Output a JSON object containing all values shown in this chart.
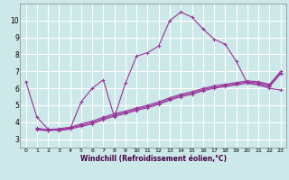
{
  "xlabel": "Windchill (Refroidissement éolien,°C)",
  "bg_color": "#cce8e8",
  "grid_color": "#ffffff",
  "line_color": "#993399",
  "xlim": [
    -0.5,
    23.5
  ],
  "ylim": [
    2.5,
    11.0
  ],
  "xticks": [
    0,
    1,
    2,
    3,
    4,
    5,
    6,
    7,
    8,
    9,
    10,
    11,
    12,
    13,
    14,
    15,
    16,
    17,
    18,
    19,
    20,
    21,
    22,
    23
  ],
  "yticks": [
    3,
    4,
    5,
    6,
    7,
    8,
    9,
    10
  ],
  "series": [
    {
      "x": [
        0,
        1,
        2,
        3,
        4,
        5,
        6,
        7,
        8,
        9,
        10,
        11,
        12,
        13,
        14,
        15,
        16,
        17,
        18,
        19,
        20,
        21,
        22,
        23
      ],
      "y": [
        6.4,
        4.3,
        3.6,
        3.5,
        3.6,
        5.2,
        6.0,
        6.5,
        4.3,
        6.3,
        7.9,
        8.1,
        8.5,
        10.0,
        10.5,
        10.2,
        9.5,
        8.9,
        8.6,
        7.6,
        6.3,
        6.2,
        6.0,
        5.9
      ]
    },
    {
      "x": [
        1,
        2,
        3,
        4,
        5,
        6,
        7,
        8,
        9,
        10,
        11,
        12,
        13,
        14,
        15,
        16,
        17,
        18,
        19,
        20,
        21,
        22,
        23
      ],
      "y": [
        3.55,
        3.5,
        3.55,
        3.6,
        3.75,
        3.9,
        4.15,
        4.35,
        4.5,
        4.7,
        4.85,
        5.05,
        5.3,
        5.5,
        5.65,
        5.85,
        6.0,
        6.1,
        6.2,
        6.3,
        6.25,
        6.1,
        6.85
      ]
    },
    {
      "x": [
        1,
        2,
        3,
        4,
        5,
        6,
        7,
        8,
        9,
        10,
        11,
        12,
        13,
        14,
        15,
        16,
        17,
        18,
        19,
        20,
        21,
        22,
        23
      ],
      "y": [
        3.6,
        3.52,
        3.58,
        3.65,
        3.82,
        3.98,
        4.22,
        4.42,
        4.57,
        4.77,
        4.92,
        5.12,
        5.37,
        5.57,
        5.72,
        5.92,
        6.07,
        6.17,
        6.27,
        6.37,
        6.32,
        6.17,
        6.92
      ]
    },
    {
      "x": [
        1,
        2,
        3,
        4,
        5,
        6,
        7,
        8,
        9,
        10,
        11,
        12,
        13,
        14,
        15,
        16,
        17,
        18,
        19,
        20,
        21,
        22,
        23
      ],
      "y": [
        3.65,
        3.55,
        3.62,
        3.7,
        3.9,
        4.06,
        4.3,
        4.5,
        4.65,
        4.84,
        5.0,
        5.2,
        5.44,
        5.65,
        5.8,
        5.99,
        6.14,
        6.24,
        6.34,
        6.44,
        6.39,
        6.24,
        6.99
      ]
    }
  ]
}
